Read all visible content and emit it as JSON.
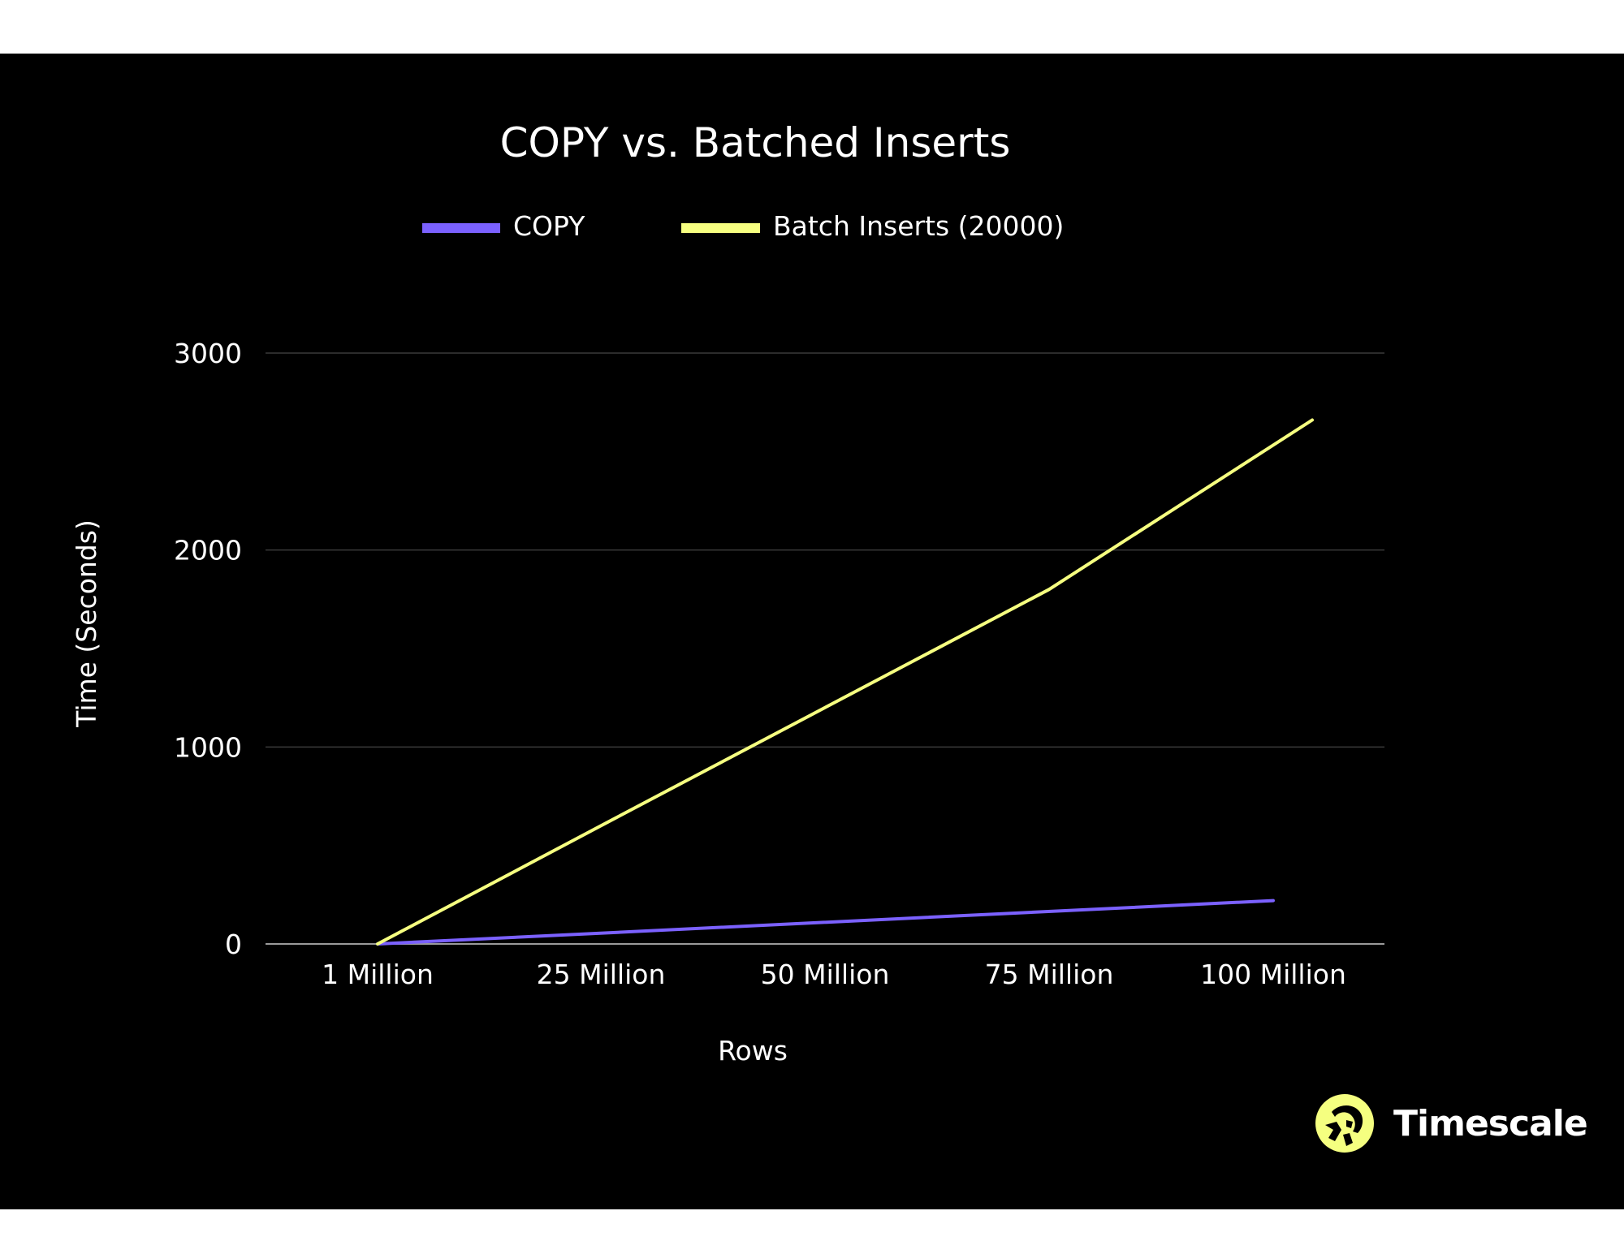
{
  "brand": {
    "name": "Timescale",
    "logo_icon": "timescale-tiger-logo-icon",
    "logo_color": "#F5FF80"
  },
  "colors": {
    "background": "#000000",
    "page": "#ffffff",
    "gridline": "#3a3a3a",
    "axis": "#9a9a9a",
    "text": "#ffffff"
  },
  "chart_data": {
    "type": "line",
    "title": "COPY vs. Batched Inserts",
    "xlabel": "Rows",
    "ylabel": "Time (Seconds)",
    "categories": [
      "1 Million",
      "25 Million",
      "50 Million",
      "75 Million",
      "100 Million"
    ],
    "ylim": [
      0,
      3000
    ],
    "yticks": [
      "3000",
      "2000",
      "1000",
      "0"
    ],
    "grid": true,
    "legend_position": "top-center",
    "series": [
      {
        "name": "COPY",
        "color": "#7B61FF",
        "x": [
          1,
          100
        ],
        "values": [
          0,
          220
        ]
      },
      {
        "name": "Batch Inserts (20000)",
        "color": "#F6FF80",
        "x": [
          1,
          25,
          75,
          100
        ],
        "values": [
          0,
          600,
          1800,
          2660
        ]
      }
    ]
  }
}
